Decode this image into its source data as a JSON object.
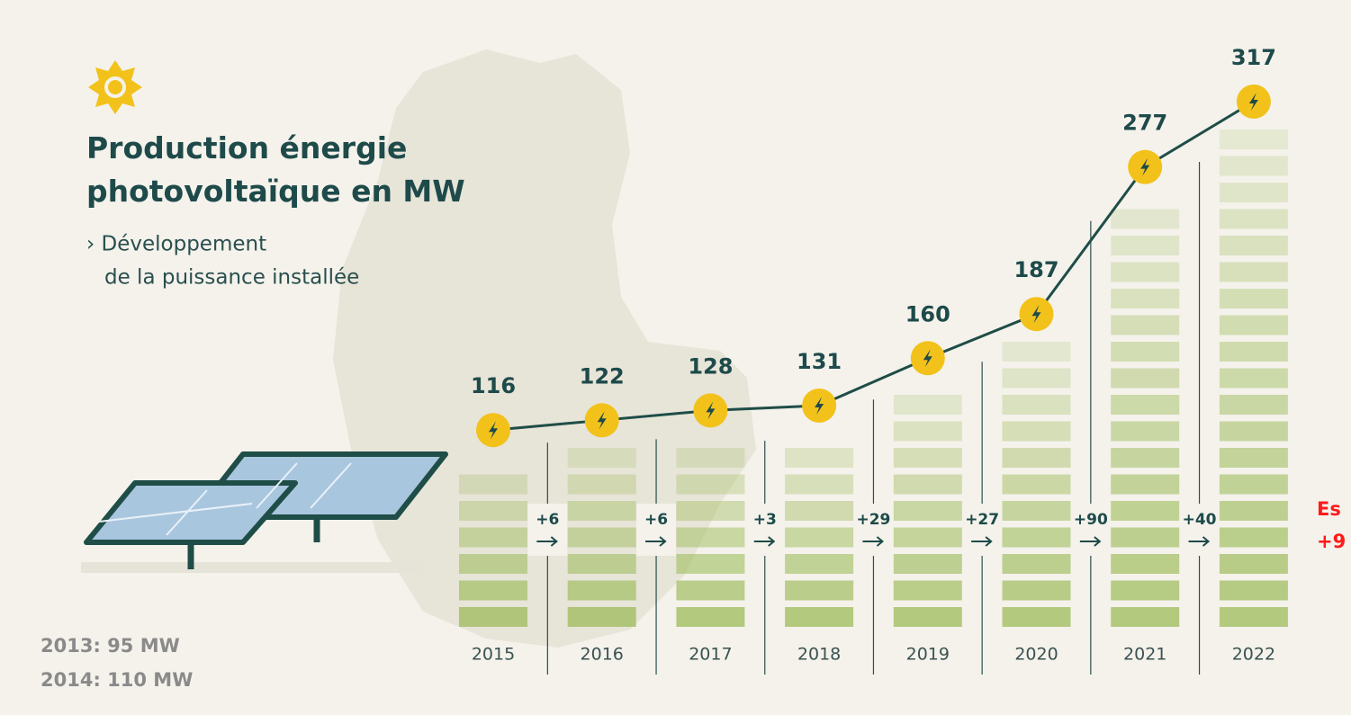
{
  "chart_data": {
    "type": "line",
    "title": "Production énergie photovoltaïque en MW",
    "subtitle": [
      "› Développement",
      "de la puissance installée"
    ],
    "categories": [
      "2015",
      "2016",
      "2017",
      "2018",
      "2019",
      "2020",
      "2021",
      "2022"
    ],
    "values": [
      116,
      122,
      128,
      131,
      160,
      187,
      277,
      317
    ],
    "color": "#1f4d47",
    "marker_color": "#f2c21b",
    "bar_color": "#9dbb5a",
    "ylim": [
      0,
      350
    ],
    "differences": {
      "values": [
        6,
        6,
        3,
        29,
        27,
        90,
        40
      ],
      "value_labels": [
        "+6",
        "+6",
        "+3",
        "+29",
        "+27",
        "+90",
        "+40"
      ]
    },
    "notes": [
      "2013: 95 MW",
      "2014: 110 MW"
    ],
    "red_note": [
      "Es",
      "+9"
    ]
  }
}
